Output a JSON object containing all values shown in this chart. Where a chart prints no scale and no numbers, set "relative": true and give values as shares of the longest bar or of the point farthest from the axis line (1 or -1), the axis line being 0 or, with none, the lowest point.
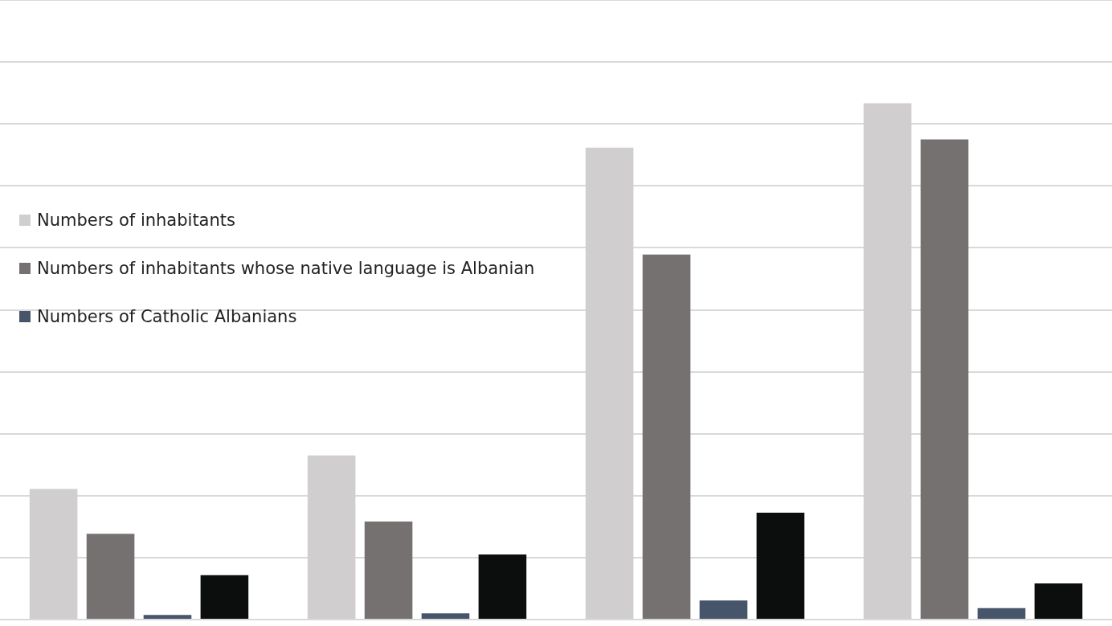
{
  "chart_data": {
    "type": "bar",
    "relative": true,
    "categories": [
      null,
      null,
      null,
      null
    ],
    "grid": "y",
    "legend": "left",
    "series": [
      {
        "name": "Numbers of inhabitants",
        "color": "#d0cecf",
        "values": [
          0.253,
          0.318,
          0.914,
          1
        ]
      },
      {
        "name": "Numbers of inhabitants whose native language is Albanian",
        "color": "#757170",
        "values": [
          0.166,
          0.19,
          0.707,
          0.93
        ]
      },
      {
        "name": "Numbers of Catholic Albanians",
        "color": "#465569",
        "values": [
          0.009,
          0.012,
          0.037,
          0.022
        ]
      },
      {
        "color": "#0c0e0e",
        "values": [
          0.086,
          0.126,
          0.207,
          0.07
        ]
      }
    ]
  }
}
